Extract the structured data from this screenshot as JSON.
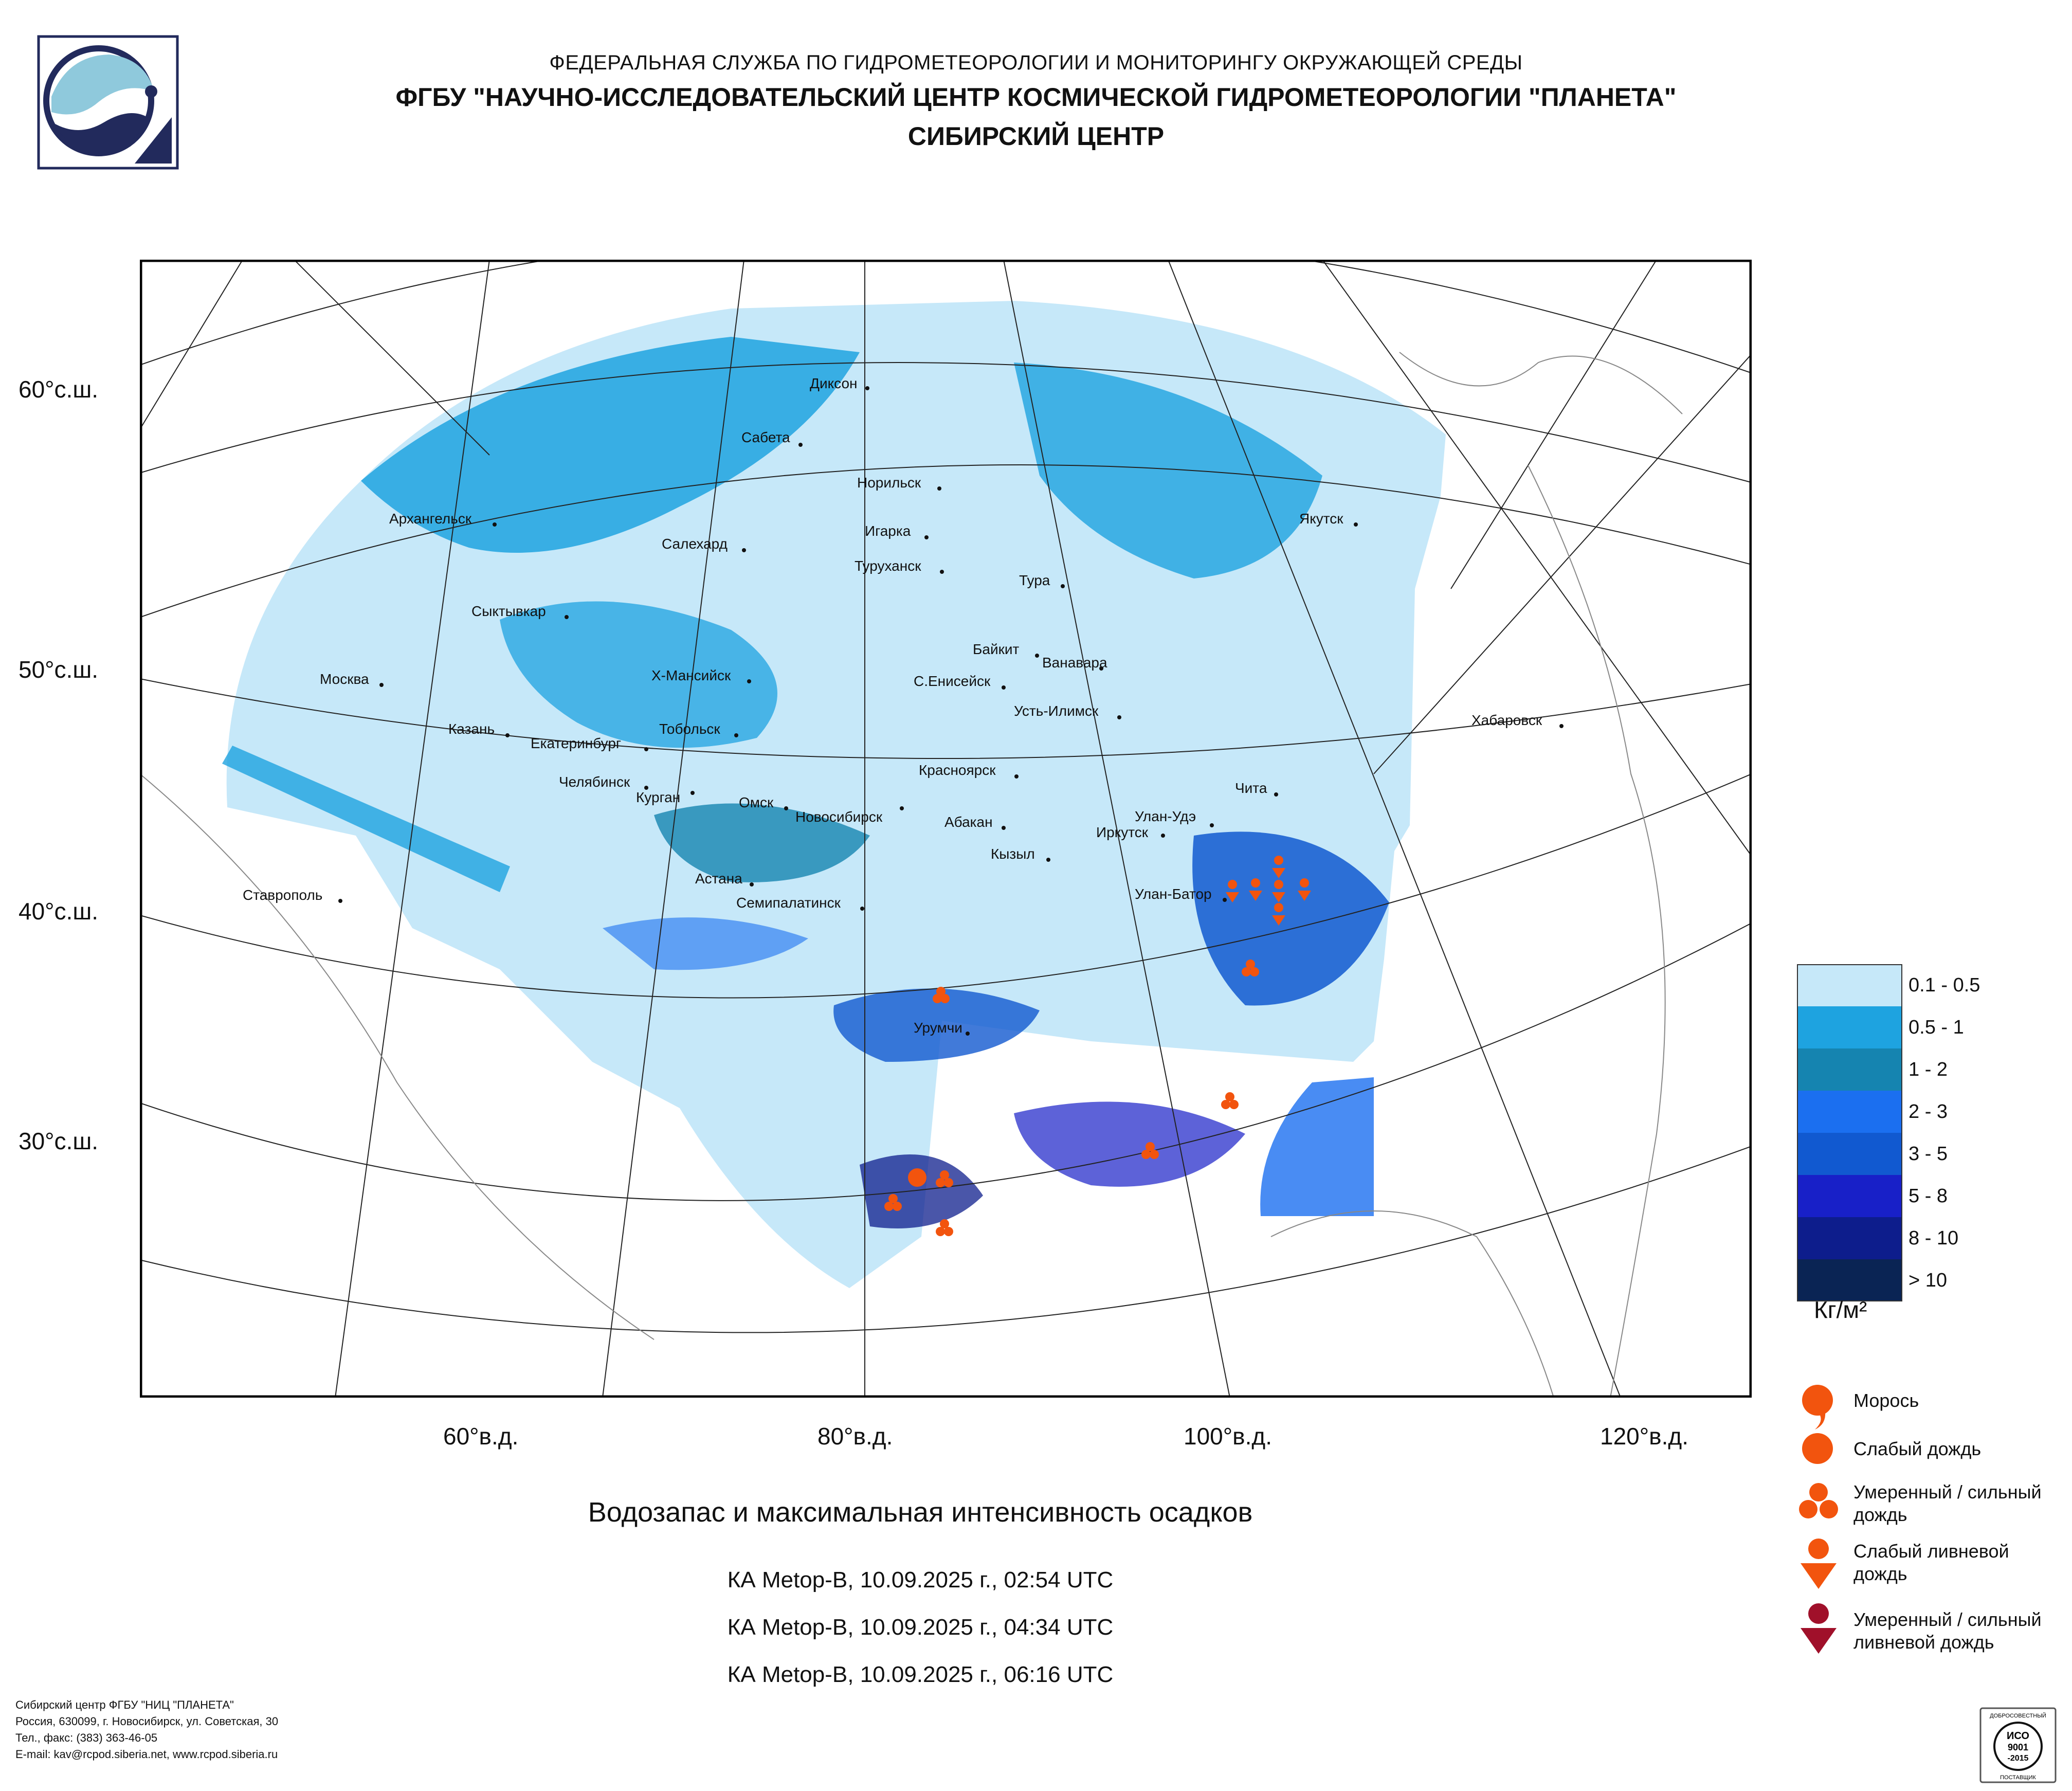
{
  "header": {
    "line1": "ФЕДЕРАЛЬНАЯ СЛУЖБА ПО ГИДРОМЕТЕОРОЛОГИИ И МОНИТОРИНГУ ОКРУЖАЮЩЕЙ СРЕДЫ",
    "line2": "ФГБУ \"НАУЧНО-ИССЛЕДОВАТЕЛЬСКИЙ ЦЕНТР КОСМИЧЕСКОЙ ГИДРОМЕТЕОРОЛОГИИ \"ПЛАНЕТА\"",
    "line3": "СИБИРСКИЙ ЦЕНТР"
  },
  "logo": {
    "icon": "planeta-logo-icon"
  },
  "map": {
    "latitude_labels": [
      "60°с.ш.",
      "50°с.ш.",
      "40°с.ш.",
      "30°с.ш."
    ],
    "longitude_labels": [
      "60°в.д.",
      "80°в.д.",
      "100°в.д.",
      "120°в.д."
    ],
    "cities": [
      "Диксон",
      "Сабета",
      "Норильск",
      "Игарка",
      "Туруханск",
      "Салехард",
      "Архангельск",
      "Сыктывкар",
      "Якутск",
      "Тура",
      "Байкит",
      "Ванавара",
      "С.Енисейск",
      "Усть-Илимск",
      "Хабаровск",
      "Х-Мансийск",
      "Москва",
      "Казань",
      "Екатеринбург",
      "Тобольск",
      "Челябинск",
      "Курган",
      "Омск",
      "Новосибирск",
      "Красноярск",
      "Абакан",
      "Кызыл",
      "Иркутск",
      "Улан-Удэ",
      "Чита",
      "Улан-Батор",
      "Астана",
      "Семипалатинск",
      "Ставрополь",
      "Урумчи"
    ]
  },
  "legend": {
    "classes": [
      {
        "label": "0.1 - 0.5",
        "color": "#c6e8f9"
      },
      {
        "label": "0.5 - 1",
        "color": "#1ea3e0"
      },
      {
        "label": "1 - 2",
        "color": "#1584b0"
      },
      {
        "label": "2 - 3",
        "color": "#1b6ff0"
      },
      {
        "label": "3 - 5",
        "color": "#1159d0"
      },
      {
        "label": "5 - 8",
        "color": "#1820c8"
      },
      {
        "label": "8 - 10",
        "color": "#0d1d8c"
      },
      {
        "label": "> 10",
        "color": "#0a2454"
      }
    ],
    "unit": "Кг/м²",
    "precip_types": [
      {
        "label": "Морось",
        "icon": "drizzle-icon",
        "color": "#f2540e"
      },
      {
        "label": "Слабый дождь",
        "icon": "light-rain-icon",
        "color": "#f2540e"
      },
      {
        "label": "Умеренный / сильный дождь",
        "icon": "moderate-heavy-rain-icon",
        "color": "#f2540e"
      },
      {
        "label": "Слабый ливневой дождь",
        "icon": "light-shower-icon",
        "color": "#f2540e"
      },
      {
        "label": "Умеренный / сильный ливневой дождь",
        "icon": "heavy-shower-icon",
        "color": "#a0102a"
      }
    ]
  },
  "caption": "Водозапас и максимальная интенсивность осадков",
  "passes": [
    "КА Metop-B, 10.09.2025 г., 02:54 UTC",
    "КА Metop-B, 10.09.2025 г., 04:34 UTC",
    "КА Metop-B, 10.09.2025 г., 06:16 UTC"
  ],
  "footer": {
    "org": "Сибирский центр ФГБУ \"НИЦ \"ПЛАНЕТА\"",
    "address": "Россия, 630099, г. Новосибирск, ул. Советская, 30",
    "phone": "Тел., факс: (383) 363-46-05",
    "email": "E-mail: kav@rcpod.siberia.net, www.rcpod.siberia.ru"
  },
  "certificate": {
    "top": "ДОБРОСОВЕСТНЫЙ",
    "iso": "ИСО",
    "num": "9001",
    "year": "-2015",
    "bottom": "ПОСТАВЩИК"
  }
}
